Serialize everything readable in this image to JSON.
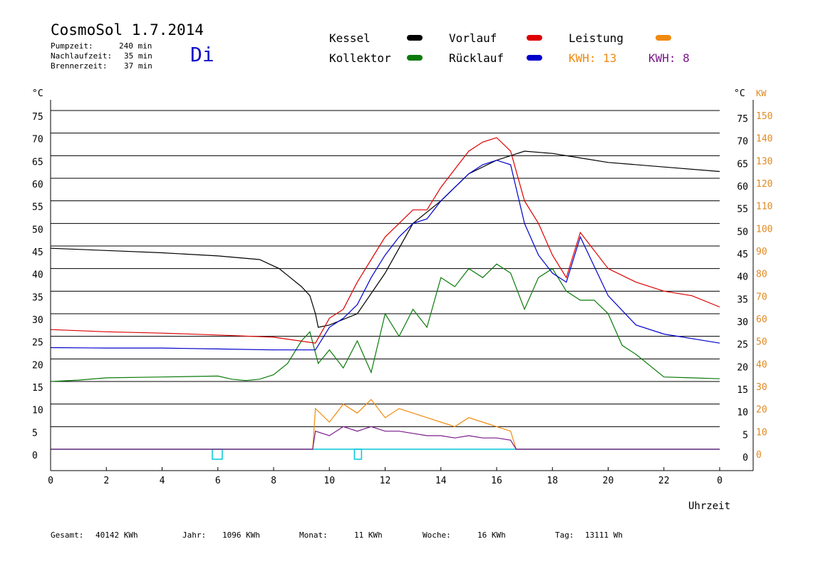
{
  "header": {
    "title": "CosmoSol 1.7.2014",
    "weekday": "Di",
    "stats": [
      {
        "label": "Pumpzeit:",
        "value": "240 min"
      },
      {
        "label": "Nachlaufzeit:",
        "value": "35 min"
      },
      {
        "label": "Brennerzeit:",
        "value": "37 min"
      }
    ]
  },
  "legend": {
    "kessel": "Kessel",
    "kollektor": "Kollektor",
    "vorlauf": "Vorlauf",
    "ruecklauf": "Rücklauf",
    "leistung": "Leistung",
    "kwh1": "KWH: 13",
    "kwh2": "KWH: 8"
  },
  "colors": {
    "kessel": "#000000",
    "kollektor": "#0a7a0a",
    "vorlauf": "#dd0000",
    "ruecklauf": "#0000cc",
    "leistung": "#f08a10",
    "kwh2": "#7a1a8a",
    "baseline": "#00c8d8"
  },
  "footer": [
    {
      "label": "Gesamt:",
      "value": "40142 KWh"
    },
    {
      "label": "Jahr:",
      "value": "1096 KWh"
    },
    {
      "label": "Monat:",
      "value": "11 KWh"
    },
    {
      "label": "Woche:",
      "value": "16 KWh"
    },
    {
      "label": "Tag:",
      "value": "13111 Wh"
    }
  ],
  "chart_data": {
    "type": "line",
    "xlabel": "Uhrzeit",
    "ylabel_left": "°C",
    "ylabel_right_temp": "°C",
    "ylabel_right_power": "KW",
    "xlim": [
      0,
      24
    ],
    "ylim": [
      0,
      75
    ],
    "x_ticks": [
      "0",
      "2",
      "4",
      "6",
      "8",
      "10",
      "12",
      "14",
      "16",
      "18",
      "20",
      "22",
      "0"
    ],
    "y_ticks_left": [
      0,
      5,
      10,
      15,
      20,
      25,
      30,
      35,
      40,
      45,
      50,
      55,
      60,
      65,
      70,
      75
    ],
    "y_ticks_right_temp": [
      0,
      5,
      10,
      15,
      20,
      25,
      30,
      35,
      40,
      45,
      50,
      55,
      60,
      65,
      70,
      75
    ],
    "y_ticks_right_power": [
      0,
      10,
      20,
      30,
      40,
      50,
      60,
      70,
      80,
      90,
      100,
      110,
      120,
      130,
      140,
      150
    ],
    "grid": true,
    "series": [
      {
        "name": "Kessel",
        "x": [
          0,
          2,
          4,
          6,
          7.5,
          8.2,
          8.5,
          9.0,
          9.3,
          9.5,
          9.6,
          10,
          11,
          12,
          13,
          14,
          15,
          16,
          16.5,
          17,
          18,
          19,
          20,
          22,
          24
        ],
        "y": [
          44.5,
          44,
          43.5,
          42.8,
          42,
          40,
          38.5,
          36,
          34,
          30,
          27,
          27.5,
          30,
          39,
          50,
          55,
          61,
          64,
          65,
          66,
          65.5,
          64.5,
          63.5,
          62.5,
          61.5
        ]
      },
      {
        "name": "Kollektor",
        "x": [
          0,
          1,
          2,
          4,
          6,
          6.5,
          7,
          7.5,
          8,
          8.5,
          9,
          9.3,
          9.6,
          10,
          10.5,
          11,
          11.5,
          12,
          12.5,
          13,
          13.5,
          14,
          14.5,
          15,
          15.5,
          16,
          16.5,
          17,
          17.5,
          18,
          18.5,
          19,
          19.5,
          20,
          20.5,
          21,
          22,
          23,
          24
        ],
        "y": [
          15,
          15.3,
          15.8,
          16,
          16.2,
          15.5,
          15.2,
          15.5,
          16.5,
          19,
          24,
          26,
          19,
          22,
          18,
          24,
          17,
          30,
          25,
          31,
          27,
          38,
          36,
          40,
          38,
          41,
          39,
          31,
          38,
          40,
          35,
          33,
          33,
          30,
          23,
          21,
          16,
          15.8,
          15.6
        ]
      },
      {
        "name": "Vorlauf",
        "x": [
          0,
          2,
          4,
          6,
          8,
          9.5,
          10,
          10.5,
          11,
          11.5,
          12,
          12.5,
          13,
          13.5,
          14,
          14.5,
          15,
          15.5,
          16,
          16.5,
          17,
          17.5,
          18,
          18.5,
          19,
          20,
          21,
          22,
          23,
          24
        ],
        "y": [
          26.5,
          26,
          25.7,
          25.3,
          24.8,
          23.5,
          29,
          31,
          37,
          42,
          47,
          50,
          53,
          53,
          58,
          62,
          66,
          68,
          69,
          66,
          55,
          50,
          43,
          38,
          48,
          40,
          37,
          35,
          34,
          31.5
        ]
      },
      {
        "name": "Rücklauf",
        "x": [
          0,
          2,
          4,
          6,
          8,
          9.5,
          10,
          10.5,
          11,
          11.5,
          12,
          12.5,
          13,
          13.5,
          14,
          14.5,
          15,
          15.5,
          16,
          16.5,
          17,
          17.5,
          18,
          18.5,
          19,
          20,
          21,
          22,
          23,
          24
        ],
        "y": [
          22.5,
          22.4,
          22.4,
          22.2,
          22,
          22,
          27,
          29,
          32,
          38,
          43,
          47,
          50,
          51,
          55,
          58,
          61,
          63,
          64,
          63,
          50,
          43,
          39,
          37,
          47,
          34,
          27.5,
          25.5,
          24.5,
          23.5
        ]
      },
      {
        "name": "Leistung",
        "x": [
          0,
          9.4,
          9.5,
          10,
          10.5,
          11,
          11.5,
          12,
          12.5,
          13,
          13.5,
          14,
          14.5,
          15,
          15.5,
          16,
          16.5,
          16.7,
          24
        ],
        "y": [
          0,
          0,
          9,
          6,
          10,
          8,
          11,
          7,
          9,
          8,
          7,
          6,
          5,
          7,
          6,
          5,
          4,
          0,
          0
        ]
      },
      {
        "name": "KWH: 8",
        "x": [
          0,
          9.4,
          9.5,
          10,
          10.5,
          11,
          11.5,
          12,
          12.5,
          13,
          13.5,
          14,
          14.5,
          15,
          15.5,
          16,
          16.5,
          16.7,
          24
        ],
        "y": [
          0,
          0,
          4,
          3,
          5,
          4,
          5,
          4,
          4,
          3.5,
          3,
          3,
          2.5,
          3,
          2.5,
          2.5,
          2,
          0,
          0
        ]
      }
    ]
  }
}
